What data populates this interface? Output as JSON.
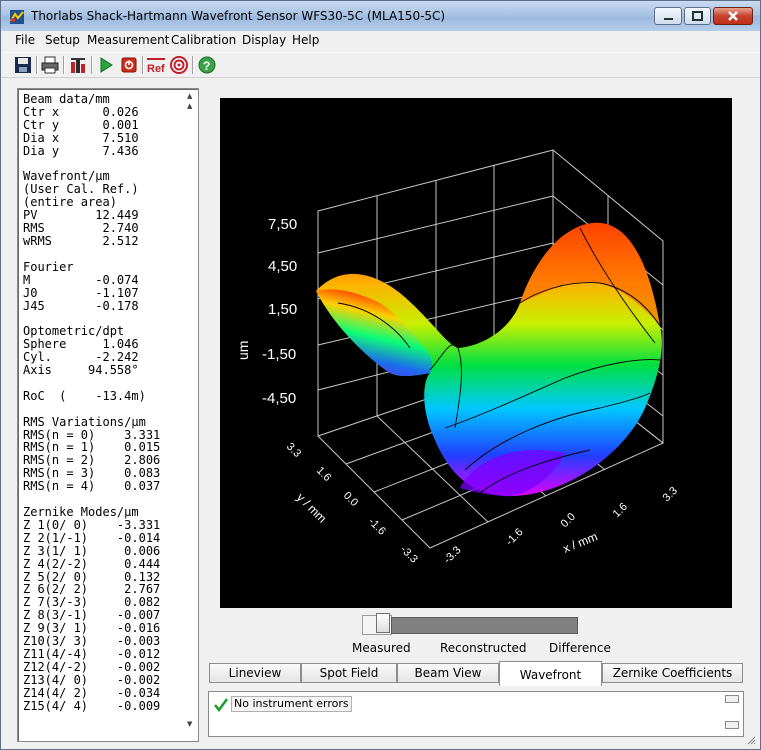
{
  "window": {
    "title": "Thorlabs Shack-Hartmann Wavefront Sensor WFS30-5C (MLA150-5C)"
  },
  "menu": [
    "File",
    "Setup",
    "Measurement",
    "Calibration",
    "Display",
    "Help"
  ],
  "toolbar": {
    "icons": [
      "save-icon",
      "print-icon",
      "settings-icon",
      "play-icon",
      "stop-icon",
      "reference-icon",
      "target-icon",
      "help-icon"
    ],
    "ref_label": "Ref"
  },
  "left_panel": {
    "lines": [
      "Beam data/mm",
      "Ctr x      0.026",
      "Ctr y      0.001",
      "Dia x      7.510",
      "Dia y      7.436",
      "",
      "Wavefront/µm",
      "(User Cal. Ref.)",
      "(entire area)",
      "PV        12.449",
      "RMS        2.740",
      "wRMS       2.512",
      "",
      "Fourier",
      "M         -0.074",
      "J0        -1.107",
      "J45       -0.178",
      "",
      "Optometric/dpt",
      "Sphere     1.046",
      "Cyl.      -2.242",
      "Axis     94.558°",
      "",
      "RoC  (    -13.4m)",
      "",
      "RMS Variations/µm",
      "RMS(n = 0)    3.331",
      "RMS(n = 1)    0.015",
      "RMS(n = 2)    2.806",
      "RMS(n = 3)    0.083",
      "RMS(n = 4)    0.037",
      "",
      "Zernike Modes/µm",
      "Z 1(0/ 0)    -3.331",
      "Z 2(1/-1)    -0.014",
      "Z 3(1/ 1)     0.006",
      "Z 4(2/-2)     0.444",
      "Z 5(2/ 0)     0.132",
      "Z 6(2/ 2)     2.767",
      "Z 7(3/-3)     0.082",
      "Z 8(3/-1)    -0.007",
      "Z 9(3/ 1)    -0.016",
      "Z10(3/ 3)    -0.003",
      "Z11(4/-4)    -0.012",
      "Z12(4/-2)    -0.002",
      "Z13(4/ 0)    -0.002",
      "Z14(4/ 2)    -0.034",
      "Z15(4/ 4)    -0.009"
    ]
  },
  "plot": {
    "z_label": "um",
    "z_ticks": [
      "7,50",
      "4,50",
      "1,50",
      "-1,50",
      "-4,50"
    ],
    "y_label": "y / mm",
    "y_ticks": [
      "3.3",
      "1.6",
      "0.0",
      "-1.6",
      "-3.3"
    ],
    "x_label": "x / mm",
    "x_ticks": [
      "-3.3",
      "-1.6",
      "0.0",
      "1.6",
      "3.3"
    ]
  },
  "slider": {
    "labels": [
      "Measured",
      "Reconstructed",
      "Difference"
    ],
    "position": 0
  },
  "tabs": [
    "Lineview",
    "Spot Field",
    "Beam View",
    "Wavefront",
    "Zernike Coefficients"
  ],
  "active_tab": "Wavefront",
  "status": {
    "message": "No instrument errors"
  },
  "colors": {
    "plot_bg": "#000000",
    "grid": "#c8c8c8",
    "title_gradient": "#a9c4e4"
  }
}
